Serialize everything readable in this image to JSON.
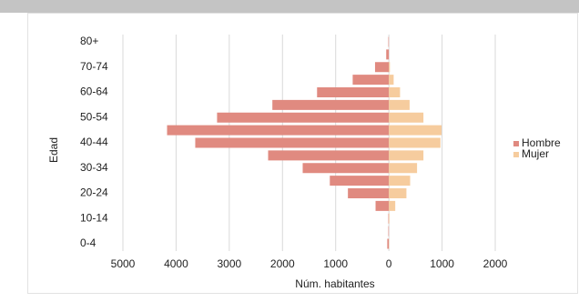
{
  "chart_data": {
    "type": "bar",
    "orientation": "horizontal",
    "y_label": "Edad",
    "x_label": "Núm. habitantes",
    "categories": [
      "0-4",
      null,
      "10-14",
      null,
      "20-24",
      null,
      "30-34",
      null,
      "40-44",
      null,
      "50-54",
      null,
      "60-64",
      null,
      "70-74",
      null,
      "80+"
    ],
    "series": [
      {
        "name": "Hombre",
        "color": "#e08a80",
        "values": [
          -30,
          -10,
          -10,
          -250,
          -770,
          -1110,
          -1620,
          -2270,
          -3640,
          -4170,
          -3230,
          -2190,
          -1350,
          -680,
          -260,
          -50,
          -10
        ]
      },
      {
        "name": "Mujer",
        "color": "#f6cc9e",
        "values": [
          5,
          0,
          10,
          120,
          330,
          400,
          530,
          650,
          970,
          990,
          650,
          390,
          210,
          90,
          20,
          0,
          0
        ]
      }
    ],
    "xlim": [
      -5000,
      2000
    ],
    "xticks": [
      {
        "value": -5000,
        "label": "5000"
      },
      {
        "value": -4000,
        "label": "4000"
      },
      {
        "value": -3000,
        "label": "3000"
      },
      {
        "value": -2000,
        "label": "2000"
      },
      {
        "value": -1000,
        "label": "1000"
      },
      0,
      1000,
      2000
    ],
    "grid": true,
    "legend": "right"
  }
}
